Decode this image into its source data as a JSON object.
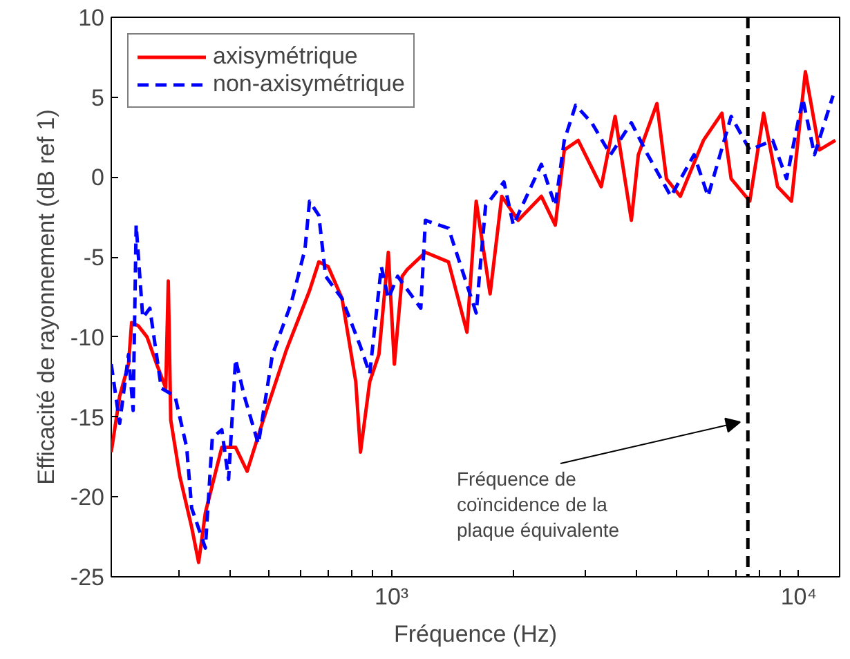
{
  "chart_data": {
    "type": "line",
    "xlabel": "Fréquence (Hz)",
    "ylabel": "Efficacité de rayonnement (dB ref 1)",
    "log": "x",
    "xlim": [
      205,
      12600
    ],
    "ylim": [
      -25,
      10
    ],
    "xticks": [
      {
        "value": 300,
        "label": null
      },
      {
        "value": 400,
        "label": null
      },
      {
        "value": 500,
        "label": null
      },
      {
        "value": 600,
        "label": null
      },
      {
        "value": 700,
        "label": null
      },
      {
        "value": 800,
        "label": null
      },
      {
        "value": 900,
        "label": null
      },
      {
        "value": 1000,
        "label": "10³"
      },
      {
        "value": 2000,
        "label": null
      },
      {
        "value": 3000,
        "label": null
      },
      {
        "value": 4000,
        "label": null
      },
      {
        "value": 5000,
        "label": null
      },
      {
        "value": 6000,
        "label": null
      },
      {
        "value": 7000,
        "label": null
      },
      {
        "value": 8000,
        "label": null
      },
      {
        "value": 9000,
        "label": null
      },
      {
        "value": 10000,
        "label": "10⁴"
      }
    ],
    "yticks": [
      -25,
      -20,
      -15,
      -10,
      -5,
      0,
      5,
      10
    ],
    "grid": false,
    "legend": "top left",
    "marker": "none",
    "series": [
      {
        "name": "axisymétrique",
        "color": "#ff0000",
        "line_style": "solid",
        "x": [
          205,
          215,
          226,
          230,
          239,
          251,
          265,
          279,
          283,
          287,
          302,
          323,
          336,
          349,
          383,
          414,
          442,
          484,
          552,
          629,
          663,
          699,
          756,
          817,
          839,
          884,
          931,
          982,
          1016,
          1062,
          1091,
          1211,
          1380,
          1532,
          1614,
          1746,
          1865,
          2046,
          2333,
          2524,
          2656,
          2873,
          3273,
          3540,
          3881,
          4037,
          4484,
          4732,
          5117,
          5834,
          6476,
          6823,
          7580,
          8200,
          8873,
          9597,
          10380,
          11230,
          12300
        ],
        "values": [
          -17.2,
          -13.7,
          -11.7,
          -9.1,
          -9.3,
          -10,
          -11.7,
          -13.2,
          -6.5,
          -15.2,
          -18.7,
          -21.9,
          -24.1,
          -21,
          -16.9,
          -16.9,
          -18.4,
          -15.2,
          -10.8,
          -7.1,
          -5.3,
          -5.6,
          -7.6,
          -12.8,
          -17.2,
          -12.8,
          -11.1,
          -4.7,
          -11.7,
          -6.2,
          -5.8,
          -4.7,
          -5.3,
          -9.7,
          -1.5,
          -7.3,
          -1.2,
          -2.7,
          -1.2,
          -3.0,
          1.7,
          2.3,
          -0.6,
          3.8,
          -2.7,
          1.4,
          4.6,
          -0.1,
          -1.2,
          2.3,
          4.0,
          -0.1,
          -1.5,
          4.0,
          -0.6,
          -1.5,
          6.6,
          1.7,
          2.3
        ]
      },
      {
        "name": "non-axisymétrique",
        "color": "#0000ff",
        "line_style": "dashed",
        "x": [
          205,
          215,
          226,
          232,
          236,
          245,
          255,
          272,
          294,
          314,
          323,
          349,
          363,
          383,
          398,
          414,
          435,
          471,
          510,
          567,
          613,
          629,
          663,
          689,
          756,
          839,
          884,
          944,
          982,
          1035,
          1180,
          1211,
          1380,
          1614,
          1702,
          1888,
          1991,
          2333,
          2524,
          2656,
          2832,
          3102,
          3450,
          3881,
          4257,
          4853,
          5533,
          5987,
          6823,
          7580,
          8630,
          9333,
          10230,
          10930,
          12140
        ],
        "values": [
          -11.7,
          -15.4,
          -11.1,
          -14.6,
          -3.0,
          -8.8,
          -8.2,
          -13.2,
          -13.7,
          -16.9,
          -20.7,
          -23.2,
          -16.3,
          -15.8,
          -18.9,
          -11.4,
          -13.7,
          -16.7,
          -11.1,
          -7.9,
          -4.5,
          -1.5,
          -2.4,
          -6.2,
          -7.6,
          -10.6,
          -12.3,
          -5.6,
          -7.6,
          -6.2,
          -8.2,
          -2.7,
          -3.2,
          -8.5,
          -1.8,
          -0.3,
          -3.0,
          0.8,
          -1.8,
          2.3,
          4.5,
          3.4,
          1.4,
          3.4,
          1.4,
          -1.2,
          1.4,
          -1.2,
          3.8,
          1.7,
          2.3,
          -0.1,
          4.9,
          1.4,
          5.1
        ]
      }
    ],
    "ref_lines": [
      {
        "axis": "x",
        "value": 7500,
        "color": "#000000",
        "line_style": "dashed"
      }
    ],
    "annotations": [
      "Fréquence de\ncoïncidence de la\nplaque équivalente"
    ]
  }
}
